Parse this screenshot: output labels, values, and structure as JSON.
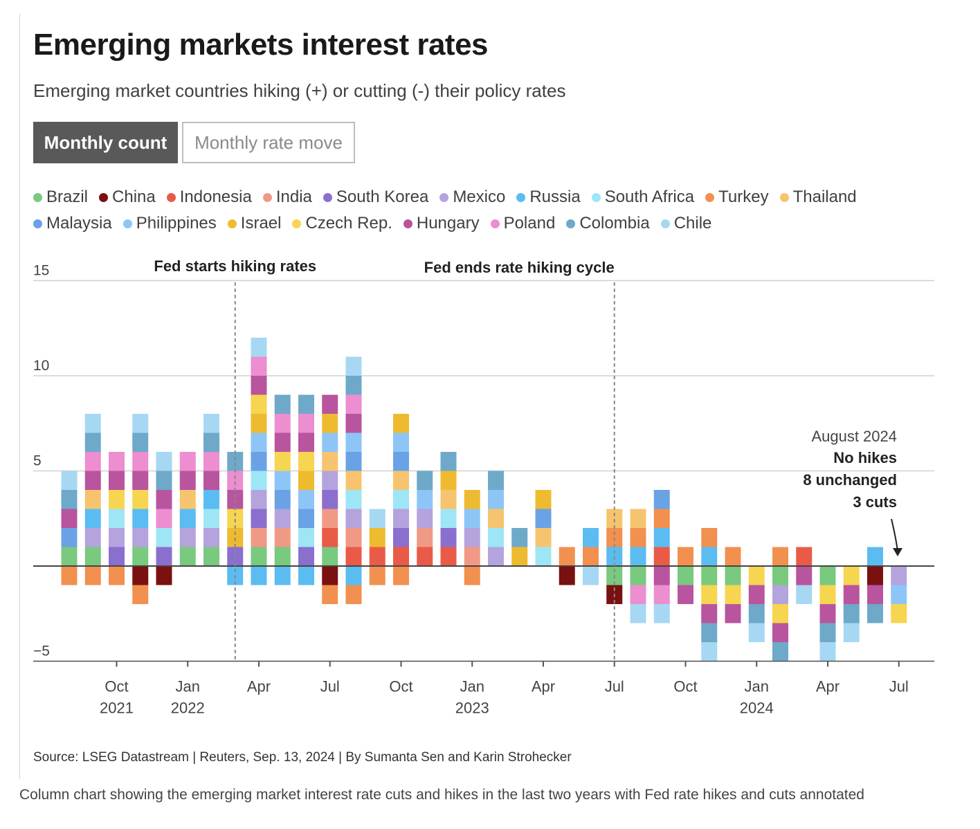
{
  "header": {
    "title": "Emerging markets interest rates",
    "subtitle": "Emerging market countries hiking (+) or cutting (-) their policy rates"
  },
  "tabs": [
    {
      "label": "Monthly count",
      "active": true
    },
    {
      "label": "Monthly rate move",
      "active": false
    }
  ],
  "legend": [
    {
      "name": "Brazil",
      "color": "#79c97f"
    },
    {
      "name": "China",
      "color": "#7a1010"
    },
    {
      "name": "Indonesia",
      "color": "#ea5b47"
    },
    {
      "name": "India",
      "color": "#f09a86"
    },
    {
      "name": "South Korea",
      "color": "#8b6fcf"
    },
    {
      "name": "Mexico",
      "color": "#b5a3dd"
    },
    {
      "name": "Russia",
      "color": "#5bbcf2"
    },
    {
      "name": "South Africa",
      "color": "#9ee6f5"
    },
    {
      "name": "Turkey",
      "color": "#f2904f"
    },
    {
      "name": "Thailand",
      "color": "#f6c46e"
    },
    {
      "name": "Malaysia",
      "color": "#6aa2e6"
    },
    {
      "name": "Philippines",
      "color": "#8ec5f7"
    },
    {
      "name": "Israel",
      "color": "#eebb30"
    },
    {
      "name": "Czech Rep.",
      "color": "#f6d550"
    },
    {
      "name": "Hungary",
      "color": "#b9549e"
    },
    {
      "name": "Poland",
      "color": "#ec8ed0"
    },
    {
      "name": "Colombia",
      "color": "#6ea9c9"
    },
    {
      "name": "Chile",
      "color": "#a6d8f3"
    }
  ],
  "chart_data": {
    "type": "bar",
    "stacked": true,
    "ylim": [
      -5,
      15
    ],
    "yticks": [
      15,
      10,
      5,
      -5
    ],
    "grid": true,
    "x_tick_labels": [
      {
        "index": 2,
        "label": "Oct",
        "sub": "2021"
      },
      {
        "index": 5,
        "label": "Jan",
        "sub": "2022"
      },
      {
        "index": 8,
        "label": "Apr",
        "sub": ""
      },
      {
        "index": 11,
        "label": "Jul",
        "sub": ""
      },
      {
        "index": 14,
        "label": "Oct",
        "sub": ""
      },
      {
        "index": 17,
        "label": "Jan",
        "sub": "2023"
      },
      {
        "index": 20,
        "label": "Apr",
        "sub": ""
      },
      {
        "index": 23,
        "label": "Jul",
        "sub": ""
      },
      {
        "index": 26,
        "label": "Oct",
        "sub": ""
      },
      {
        "index": 29,
        "label": "Jan",
        "sub": "2024"
      },
      {
        "index": 32,
        "label": "Apr",
        "sub": ""
      },
      {
        "index": 35,
        "label": "Jul",
        "sub": ""
      }
    ],
    "months": [
      {
        "label": "Aug 2021",
        "pos": [
          "Brazil",
          "Malaysia",
          "Hungary",
          "Colombia",
          "Chile"
        ],
        "neg": [
          "Turkey"
        ]
      },
      {
        "label": "Sep 2021",
        "pos": [
          "Brazil",
          "Mexico",
          "Russia",
          "Thailand",
          "Hungary",
          "Poland",
          "Colombia",
          "Chile"
        ],
        "neg": [
          "Turkey"
        ]
      },
      {
        "label": "Oct 2021",
        "pos": [
          "South Korea",
          "Mexico",
          "South Africa",
          "Czech Rep.",
          "Hungary",
          "Poland"
        ],
        "neg": [
          "Turkey"
        ]
      },
      {
        "label": "Nov 2021",
        "pos": [
          "Brazil",
          "Mexico",
          "Russia",
          "Czech Rep.",
          "Hungary",
          "Poland",
          "Colombia",
          "Chile"
        ],
        "neg": [
          "China",
          "Turkey"
        ]
      },
      {
        "label": "Dec 2021",
        "pos": [
          "South Korea",
          "South Africa",
          "Poland",
          "Hungary",
          "Colombia",
          "Chile"
        ],
        "neg": [
          "China"
        ]
      },
      {
        "label": "Jan 2022",
        "pos": [
          "Brazil",
          "Mexico",
          "Russia",
          "Thailand",
          "Hungary",
          "Poland"
        ],
        "neg": []
      },
      {
        "label": "Feb 2022",
        "pos": [
          "Brazil",
          "Mexico",
          "South Africa",
          "Russia",
          "Hungary",
          "Poland",
          "Colombia",
          "Chile"
        ],
        "neg": []
      },
      {
        "label": "Mar 2022",
        "pos": [
          "South Korea",
          "Israel",
          "Czech Rep.",
          "Hungary",
          "Poland",
          "Colombia"
        ],
        "neg": [
          "Russia"
        ]
      },
      {
        "label": "Apr 2022",
        "pos": [
          "Brazil",
          "India",
          "South Korea",
          "Mexico",
          "South Africa",
          "Malaysia",
          "Philippines",
          "Israel",
          "Czech Rep.",
          "Hungary",
          "Poland",
          "Chile"
        ],
        "neg": [
          "Russia"
        ]
      },
      {
        "label": "May 2022",
        "pos": [
          "Brazil",
          "India",
          "Mexico",
          "Malaysia",
          "Philippines",
          "Czech Rep.",
          "Hungary",
          "Poland",
          "Colombia"
        ],
        "neg": [
          "Russia"
        ]
      },
      {
        "label": "Jun 2022",
        "pos": [
          "South Korea",
          "South Africa",
          "Malaysia",
          "Philippines",
          "Israel",
          "Czech Rep.",
          "Hungary",
          "Poland",
          "Colombia"
        ],
        "neg": [
          "Russia"
        ]
      },
      {
        "label": "Jul 2022",
        "pos": [
          "Brazil",
          "Indonesia",
          "India",
          "South Korea",
          "Mexico",
          "Thailand",
          "Philippines",
          "Israel",
          "Hungary"
        ],
        "neg": [
          "China",
          "Turkey"
        ]
      },
      {
        "label": "Aug 2022",
        "pos": [
          "Indonesia",
          "India",
          "Mexico",
          "South Africa",
          "Thailand",
          "Malaysia",
          "Philippines",
          "Hungary",
          "Poland",
          "Colombia",
          "Chile"
        ],
        "neg": [
          "Russia",
          "Turkey"
        ]
      },
      {
        "label": "Sep 2022",
        "pos": [
          "Indonesia",
          "Israel",
          "Chile"
        ],
        "neg": [
          "Turkey"
        ]
      },
      {
        "label": "Oct 2022",
        "pos": [
          "Indonesia",
          "South Korea",
          "Mexico",
          "South Africa",
          "Thailand",
          "Malaysia",
          "Philippines",
          "Israel"
        ],
        "neg": [
          "Turkey"
        ]
      },
      {
        "label": "Nov 2022",
        "pos": [
          "Indonesia",
          "India",
          "Mexico",
          "Philippines",
          "Colombia"
        ],
        "neg": []
      },
      {
        "label": "Dec 2022",
        "pos": [
          "Indonesia",
          "South Korea",
          "South Africa",
          "Thailand",
          "Israel",
          "Colombia"
        ],
        "neg": []
      },
      {
        "label": "Jan 2023",
        "pos": [
          "India",
          "Mexico",
          "Philippines",
          "Israel"
        ],
        "neg": [
          "Turkey"
        ]
      },
      {
        "label": "Feb 2023",
        "pos": [
          "Mexico",
          "South Africa",
          "Thailand",
          "Philippines",
          "Colombia"
        ],
        "neg": []
      },
      {
        "label": "Mar 2023",
        "pos": [
          "Israel",
          "Colombia"
        ],
        "neg": []
      },
      {
        "label": "Apr 2023",
        "pos": [
          "South Africa",
          "Thailand",
          "Malaysia",
          "Israel"
        ],
        "neg": []
      },
      {
        "label": "May 2023",
        "pos": [
          "Turkey"
        ],
        "neg": [
          "China"
        ]
      },
      {
        "label": "Jun 2023",
        "pos": [
          "Turkey",
          "Russia"
        ],
        "neg": [
          "Chile"
        ]
      },
      {
        "label": "Jul 2023",
        "pos": [
          "Russia",
          "Turkey",
          "Thailand"
        ],
        "neg": [
          "Brazil",
          "China"
        ]
      },
      {
        "label": "Aug 2023",
        "pos": [
          "Russia",
          "Turkey",
          "Thailand"
        ],
        "neg": [
          "Brazil",
          "Poland",
          "Chile"
        ]
      },
      {
        "label": "Sep 2023",
        "pos": [
          "Indonesia",
          "Russia",
          "Turkey",
          "Malaysia"
        ],
        "neg": [
          "Hungary",
          "Poland",
          "Chile"
        ]
      },
      {
        "label": "Oct 2023",
        "pos": [
          "Turkey"
        ],
        "neg": [
          "Brazil",
          "Hungary"
        ]
      },
      {
        "label": "Nov 2023",
        "pos": [
          "Russia",
          "Turkey"
        ],
        "neg": [
          "Brazil",
          "Czech Rep.",
          "Hungary",
          "Colombia",
          "Chile"
        ]
      },
      {
        "label": "Dec 2023",
        "pos": [
          "Turkey"
        ],
        "neg": [
          "Brazil",
          "Czech Rep.",
          "Hungary"
        ]
      },
      {
        "label": "Jan 2024",
        "pos": [],
        "neg": [
          "Czech Rep.",
          "Hungary",
          "Colombia",
          "Chile"
        ]
      },
      {
        "label": "Feb 2024",
        "pos": [
          "Turkey"
        ],
        "neg": [
          "Brazil",
          "Mexico",
          "Czech Rep.",
          "Hungary",
          "Colombia"
        ]
      },
      {
        "label": "Mar 2024",
        "pos": [
          "Indonesia"
        ],
        "neg": [
          "Hungary",
          "Chile"
        ]
      },
      {
        "label": "Apr 2024",
        "pos": [],
        "neg": [
          "Brazil",
          "Czech Rep.",
          "Hungary",
          "Colombia",
          "Chile"
        ]
      },
      {
        "label": "May 2024",
        "pos": [],
        "neg": [
          "Czech Rep.",
          "Hungary",
          "Colombia",
          "Chile"
        ]
      },
      {
        "label": "Jun 2024",
        "pos": [
          "Russia"
        ],
        "neg": [
          "China",
          "Hungary",
          "Colombia"
        ]
      },
      {
        "label": "Jul 2024",
        "pos": [],
        "neg": [
          "Mexico",
          "Philippines",
          "Czech Rep."
        ]
      }
    ],
    "annotations": {
      "fed_start": {
        "label": "Fed starts hiking rates",
        "month": "Mar 2022"
      },
      "fed_end": {
        "label": "Fed ends rate hiking cycle",
        "month": "Jul 2023"
      },
      "latest_title": "August 2024",
      "latest_lines": [
        "No hikes",
        "8 unchanged",
        "3 cuts"
      ]
    }
  },
  "footer": {
    "source": "Source: LSEG Datastream | Reuters, Sep. 13, 2024 | By Sumanta Sen and Karin Strohecker",
    "caption": "Column chart showing the emerging market interest rate cuts and hikes in the last two years with Fed rate hikes and cuts annotated"
  }
}
